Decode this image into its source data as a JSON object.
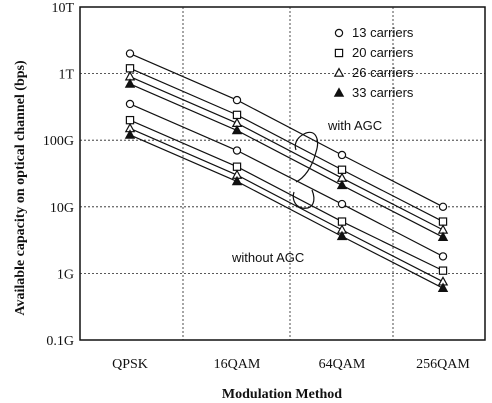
{
  "chart_data": {
    "type": "line",
    "xlabel": "Modulation Method",
    "ylabel": "Available capacity on optical channel (bps)",
    "categories": [
      "QPSK",
      "16QAM",
      "64QAM",
      "256QAM"
    ],
    "y_scale": "log",
    "ylim_bps": [
      100000000.0,
      10000000000000.0
    ],
    "y_ticks": [
      {
        "label": "0.1G",
        "value": 100000000.0
      },
      {
        "label": "1G",
        "value": 1000000000.0
      },
      {
        "label": "10G",
        "value": 10000000000.0
      },
      {
        "label": "100G",
        "value": 100000000000.0
      },
      {
        "label": "1T",
        "value": 1000000000000.0
      },
      {
        "label": "10T",
        "value": 10000000000000.0
      }
    ],
    "grid": true,
    "legend_position": "top-right",
    "legend": [
      {
        "label": "13 carriers",
        "marker": "circle-open"
      },
      {
        "label": "20 carriers",
        "marker": "square-open"
      },
      {
        "label": "26 carriers",
        "marker": "triangle-open"
      },
      {
        "label": "33 carriers",
        "marker": "triangle-filled"
      }
    ],
    "annotations": [
      "with AGC",
      "without AGC"
    ],
    "series": [
      {
        "group": "with AGC",
        "marker": "circle-open",
        "values": [
          2000000000000.0,
          400000000000.0,
          60000000000.0,
          10000000000.0
        ]
      },
      {
        "group": "with AGC",
        "marker": "square-open",
        "values": [
          1200000000000.0,
          240000000000.0,
          36000000000.0,
          6000000000.0
        ]
      },
      {
        "group": "with AGC",
        "marker": "triangle-open",
        "values": [
          900000000000.0,
          180000000000.0,
          27000000000.0,
          4500000000.0
        ]
      },
      {
        "group": "with AGC",
        "marker": "triangle-filled",
        "values": [
          700000000000.0,
          140000000000.0,
          21000000000.0,
          3500000000.0
        ]
      },
      {
        "group": "without AGC",
        "marker": "circle-open",
        "values": [
          350000000000.0,
          70000000000.0,
          11000000000.0,
          1800000000.0
        ]
      },
      {
        "group": "without AGC",
        "marker": "square-open",
        "values": [
          200000000000.0,
          40000000000.0,
          6000000000.0,
          1100000000.0
        ]
      },
      {
        "group": "without AGC",
        "marker": "triangle-open",
        "values": [
          150000000000.0,
          30000000000.0,
          4500000000.0,
          750000000.0
        ]
      },
      {
        "group": "without AGC",
        "marker": "triangle-filled",
        "values": [
          120000000000.0,
          24000000000.0,
          3600000000.0,
          600000000.0
        ]
      }
    ]
  }
}
